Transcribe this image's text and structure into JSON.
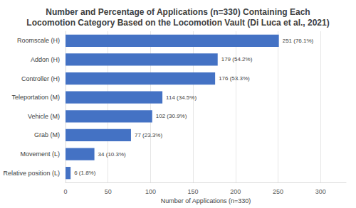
{
  "chart_data": {
    "type": "bar",
    "orientation": "horizontal",
    "title": "Number and Percentage of Applications (n=330) Containing Each\nLocomotion Category Based on the Locomotion Vault (Di Luca et al., 2021)",
    "x_label": "Number of Applications (n=330)",
    "categories": [
      "Roomscale (H)",
      "Addon (H)",
      "Controller (H)",
      "Teleportation (M)",
      "Vehicle (M)",
      "Grab (M)",
      "Movement (L)",
      "Relative position (L)"
    ],
    "values": [
      251,
      179,
      176,
      114,
      102,
      77,
      34,
      6
    ],
    "value_labels": [
      "251 (76.1%)",
      "179 (54.2%)",
      "176 (53.3%)",
      "114 (34.5%)",
      "102 (30.9%)",
      "77 (23.3%)",
      "34 (10.3%)",
      "6 (1.8%)"
    ],
    "data_labels": true,
    "color": "#4472c4",
    "xlim": [
      0,
      330
    ],
    "xticks": [
      0,
      50,
      100,
      150,
      200,
      250,
      300
    ],
    "grid": true
  }
}
